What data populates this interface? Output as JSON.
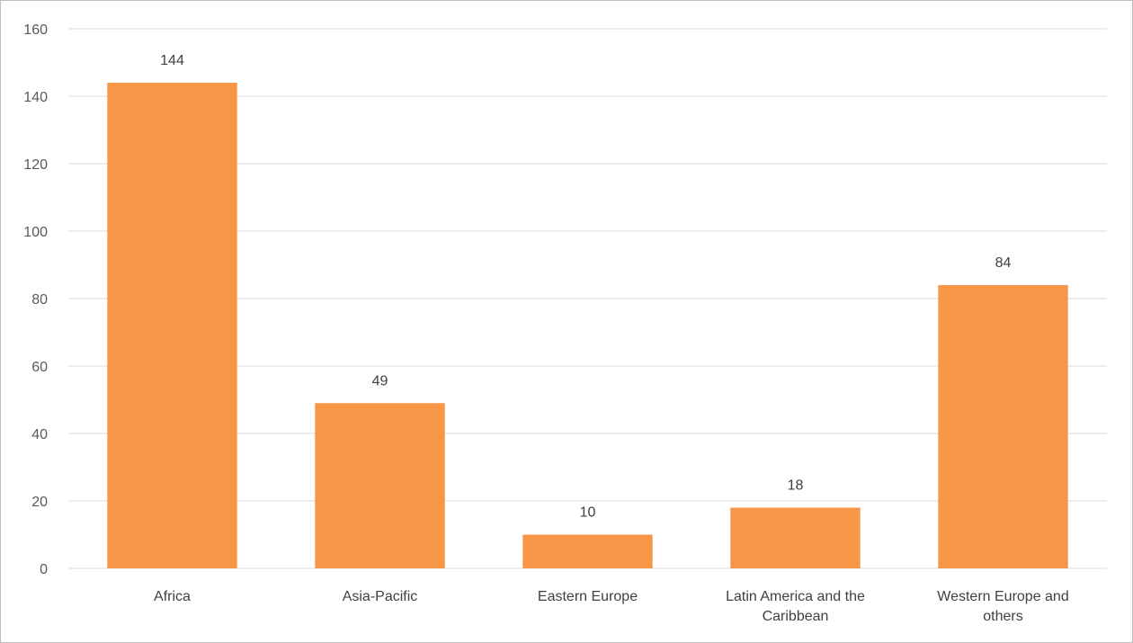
{
  "chart_data": {
    "type": "bar",
    "title": "",
    "xlabel": "",
    "ylabel": "",
    "categories": [
      [
        "Africa"
      ],
      [
        "Asia-Pacific"
      ],
      [
        "Eastern Europe"
      ],
      [
        "Latin America and the",
        "Caribbean"
      ],
      [
        "Western Europe and",
        "others"
      ]
    ],
    "values": [
      144,
      49,
      10,
      18,
      84
    ],
    "data_labels": [
      "144",
      "49",
      "10",
      "18",
      "84"
    ],
    "ylim": [
      0,
      160
    ],
    "yticks": [
      0,
      20,
      40,
      60,
      80,
      100,
      120,
      140,
      160
    ],
    "ytick_labels": [
      "0",
      "20",
      "40",
      "60",
      "80",
      "100",
      "120",
      "140",
      "160"
    ],
    "grid": true,
    "legend": "none",
    "colors": {
      "bar": "#f79646",
      "grid": "#d9d9d9",
      "axis": "#d9d9d9",
      "border": "#bfbfbf"
    }
  }
}
